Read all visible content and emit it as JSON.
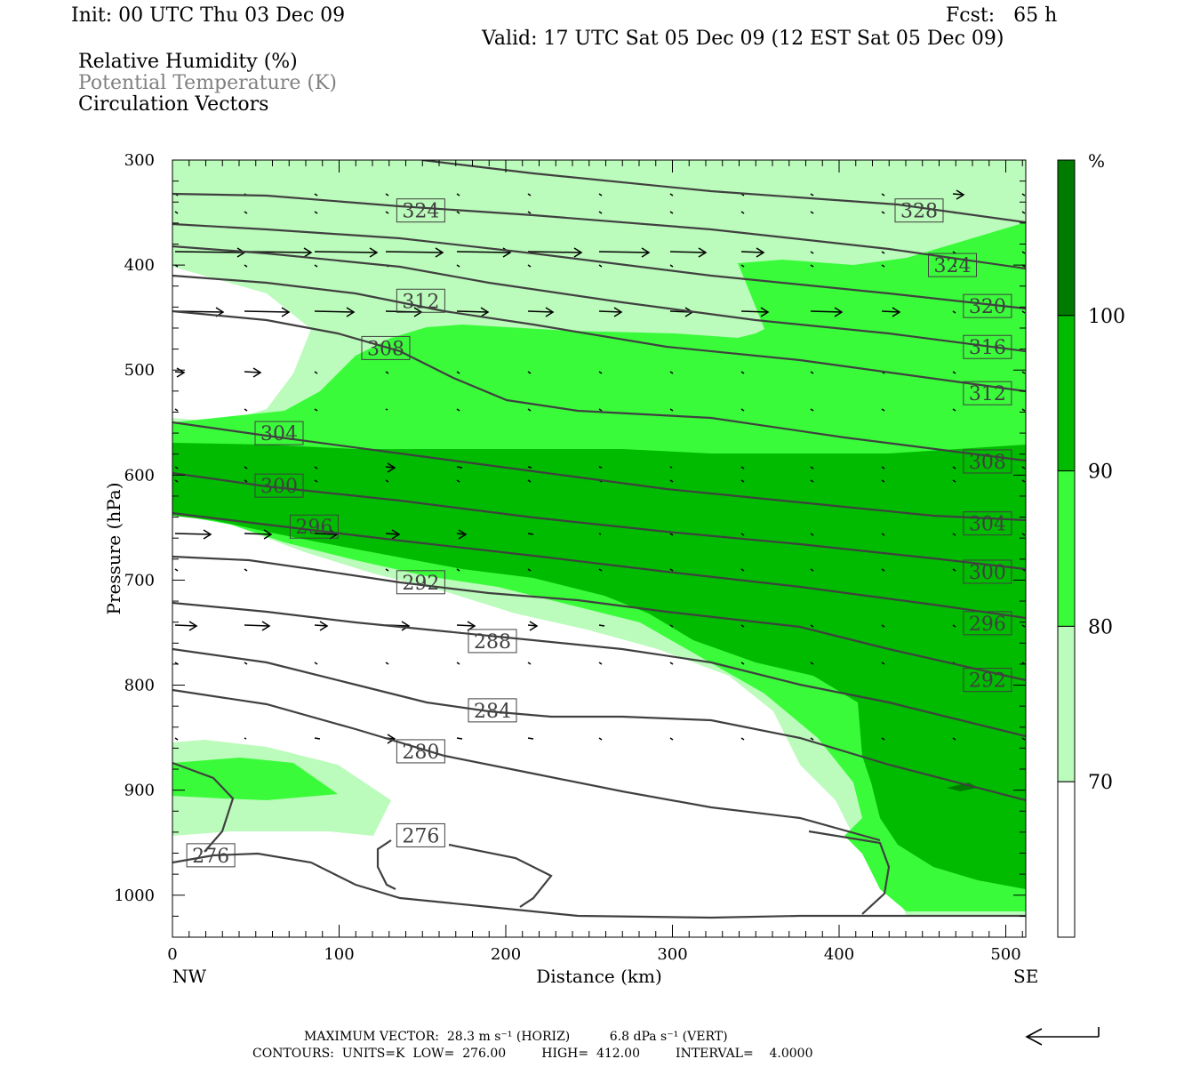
{
  "header": {
    "init": "Init: 00 UTC Thu 03 Dec 09",
    "fcst": "Fcst:   65 h",
    "valid": "Valid: 17 UTC Sat 05 Dec 09 (12 EST Sat 05 Dec 09)",
    "fields": [
      "Relative Humidity (%)",
      "Potential Temperature (K)",
      "Circulation Vectors"
    ]
  },
  "footer": {
    "max_vector": "MAXIMUM VECTOR:  28.3 m s⁻¹ (HORIZ)          6.8 dPa s⁻¹ (VERT)",
    "contours": "CONTOURS:  UNITS=K  LOW=  276.00         HIGH=  412.00         INTERVAL=    4.0000"
  },
  "colors": {
    "rh70": "#bbfbbb",
    "rh80": "#3afb3a",
    "rh90": "#00bb00",
    "rh100": "#007b00",
    "contour": "#404040"
  },
  "chart_data": {
    "type": "contour",
    "xlabel": "Distance (km)",
    "ylabel": "Pressure (hPa)",
    "xlim": [
      0,
      512
    ],
    "ylim": [
      1040,
      300
    ],
    "x_ticks": [
      0,
      100,
      200,
      300,
      400,
      500
    ],
    "y_ticks": [
      300,
      400,
      500,
      600,
      700,
      800,
      900,
      1000
    ],
    "x_end_labels": {
      "left": "NW",
      "right": "SE"
    },
    "colorbar": {
      "unit": "%",
      "levels": [
        70,
        80,
        90,
        100
      ]
    },
    "contour_labels": [
      {
        "text": "324",
        "x": 149,
        "p": 348
      },
      {
        "text": "328",
        "x": 448,
        "p": 348
      },
      {
        "text": "324",
        "x": 468,
        "p": 400
      },
      {
        "text": "312",
        "x": 149,
        "p": 434
      },
      {
        "text": "308",
        "x": 128,
        "p": 479
      },
      {
        "text": "320",
        "x": 489,
        "p": 439
      },
      {
        "text": "316",
        "x": 489,
        "p": 478
      },
      {
        "text": "312",
        "x": 489,
        "p": 522
      },
      {
        "text": "304",
        "x": 64,
        "p": 560
      },
      {
        "text": "308",
        "x": 489,
        "p": 587
      },
      {
        "text": "300",
        "x": 64,
        "p": 610
      },
      {
        "text": "304",
        "x": 489,
        "p": 646
      },
      {
        "text": "296",
        "x": 85,
        "p": 649
      },
      {
        "text": "300",
        "x": 489,
        "p": 692
      },
      {
        "text": "292",
        "x": 149,
        "p": 702
      },
      {
        "text": "296",
        "x": 489,
        "p": 741
      },
      {
        "text": "288",
        "x": 192,
        "p": 758
      },
      {
        "text": "292",
        "x": 489,
        "p": 795
      },
      {
        "text": "284",
        "x": 192,
        "p": 824
      },
      {
        "text": "280",
        "x": 149,
        "p": 863
      },
      {
        "text": "276",
        "x": 149,
        "p": 943
      },
      {
        "text": "276",
        "x": 23,
        "p": 962
      }
    ]
  }
}
